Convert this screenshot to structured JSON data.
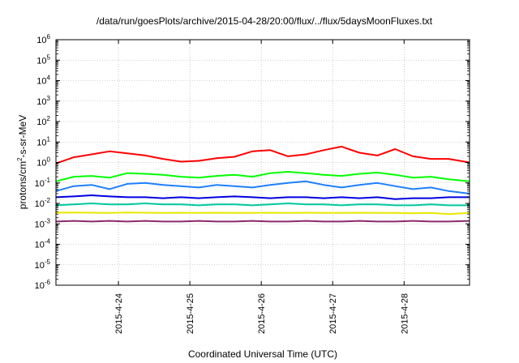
{
  "chart_data": {
    "type": "line",
    "title": "/data/run/goesPlots/archive/2015-04-28/20:00/flux/../flux/5daysMoonFluxes.txt",
    "xlabel": "Coordinated Universal Time (UTC)",
    "ylabel": {
      "prefix": "protons/cm",
      "sup": "2",
      "suffix": "-s-sr-MeV"
    },
    "y_scale": "log",
    "ylim": [
      1e-06,
      1000000.0
    ],
    "y_ticks": [
      {
        "exp": "-6"
      },
      {
        "exp": "-5"
      },
      {
        "exp": "-4"
      },
      {
        "exp": "-3"
      },
      {
        "exp": "-2"
      },
      {
        "exp": "-1"
      },
      {
        "exp": "0"
      },
      {
        "exp": "1"
      },
      {
        "exp": "2"
      },
      {
        "exp": "3"
      },
      {
        "exp": "4"
      },
      {
        "exp": "5"
      },
      {
        "exp": "6"
      }
    ],
    "y_tick_base": "10",
    "xlim": [
      "2015-04-23T03:00",
      "2015-04-28T22:00"
    ],
    "x_ticks": [
      "2015-4-24",
      "2015-4-25",
      "2015-4-26",
      "2015-4-27",
      "2015-4-28"
    ],
    "grid": true,
    "legend": "none",
    "series": [
      {
        "color": "#ff0000",
        "x": [
          "2015-04-23T03:00",
          "2015-04-23T09:00",
          "2015-04-23T15:00",
          "2015-04-23T21:00",
          "2015-04-24T03:00",
          "2015-04-24T09:00",
          "2015-04-24T15:00",
          "2015-04-24T21:00",
          "2015-04-25T03:00",
          "2015-04-25T09:00",
          "2015-04-25T15:00",
          "2015-04-25T21:00",
          "2015-04-26T03:00",
          "2015-04-26T09:00",
          "2015-04-26T15:00",
          "2015-04-26T21:00",
          "2015-04-27T03:00",
          "2015-04-27T09:00",
          "2015-04-27T15:00",
          "2015-04-27T21:00",
          "2015-04-28T03:00",
          "2015-04-28T09:00",
          "2015-04-28T15:00",
          "2015-04-28T22:00"
        ],
        "y": [
          0.9,
          1.8,
          2.5,
          3.5,
          2.8,
          2.2,
          1.5,
          1.1,
          1.2,
          1.6,
          1.9,
          3.5,
          4.0,
          2.0,
          2.5,
          4.0,
          6.0,
          3.0,
          2.2,
          4.5,
          2.0,
          1.5,
          1.5,
          1.0
        ]
      },
      {
        "color": "#00ff00",
        "x": [
          "2015-04-23T03:00",
          "2015-04-23T09:00",
          "2015-04-23T15:00",
          "2015-04-23T21:00",
          "2015-04-24T03:00",
          "2015-04-24T09:00",
          "2015-04-24T15:00",
          "2015-04-24T21:00",
          "2015-04-25T03:00",
          "2015-04-25T09:00",
          "2015-04-25T15:00",
          "2015-04-25T21:00",
          "2015-04-26T03:00",
          "2015-04-26T09:00",
          "2015-04-26T15:00",
          "2015-04-26T21:00",
          "2015-04-27T03:00",
          "2015-04-27T09:00",
          "2015-04-27T15:00",
          "2015-04-27T21:00",
          "2015-04-28T03:00",
          "2015-04-28T09:00",
          "2015-04-28T15:00",
          "2015-04-28T22:00"
        ],
        "y": [
          0.12,
          0.2,
          0.22,
          0.18,
          0.3,
          0.28,
          0.25,
          0.2,
          0.18,
          0.22,
          0.25,
          0.2,
          0.3,
          0.35,
          0.3,
          0.25,
          0.22,
          0.28,
          0.32,
          0.25,
          0.18,
          0.2,
          0.15,
          0.12
        ]
      },
      {
        "color": "#1e7fff",
        "x": [
          "2015-04-23T03:00",
          "2015-04-23T09:00",
          "2015-04-23T15:00",
          "2015-04-23T21:00",
          "2015-04-24T03:00",
          "2015-04-24T09:00",
          "2015-04-24T15:00",
          "2015-04-24T21:00",
          "2015-04-25T03:00",
          "2015-04-25T09:00",
          "2015-04-25T15:00",
          "2015-04-25T21:00",
          "2015-04-26T03:00",
          "2015-04-26T09:00",
          "2015-04-26T15:00",
          "2015-04-26T21:00",
          "2015-04-27T03:00",
          "2015-04-27T09:00",
          "2015-04-27T15:00",
          "2015-04-27T21:00",
          "2015-04-28T03:00",
          "2015-04-28T09:00",
          "2015-04-28T15:00",
          "2015-04-28T22:00"
        ],
        "y": [
          0.04,
          0.07,
          0.08,
          0.05,
          0.09,
          0.1,
          0.08,
          0.07,
          0.06,
          0.08,
          0.07,
          0.06,
          0.08,
          0.1,
          0.12,
          0.08,
          0.06,
          0.08,
          0.1,
          0.07,
          0.05,
          0.06,
          0.04,
          0.03
        ]
      },
      {
        "color": "#0000e0",
        "x": [
          "2015-04-23T03:00",
          "2015-04-23T09:00",
          "2015-04-23T15:00",
          "2015-04-23T21:00",
          "2015-04-24T03:00",
          "2015-04-24T09:00",
          "2015-04-24T15:00",
          "2015-04-24T21:00",
          "2015-04-25T03:00",
          "2015-04-25T09:00",
          "2015-04-25T15:00",
          "2015-04-25T21:00",
          "2015-04-26T03:00",
          "2015-04-26T09:00",
          "2015-04-26T15:00",
          "2015-04-26T21:00",
          "2015-04-27T03:00",
          "2015-04-27T09:00",
          "2015-04-27T15:00",
          "2015-04-27T21:00",
          "2015-04-28T03:00",
          "2015-04-28T09:00",
          "2015-04-28T15:00",
          "2015-04-28T22:00"
        ],
        "y": [
          0.02,
          0.022,
          0.025,
          0.022,
          0.02,
          0.02,
          0.018,
          0.02,
          0.018,
          0.02,
          0.022,
          0.02,
          0.018,
          0.02,
          0.02,
          0.018,
          0.02,
          0.018,
          0.02,
          0.016,
          0.018,
          0.018,
          0.02,
          0.02
        ]
      },
      {
        "color": "#00c8a0",
        "x": [
          "2015-04-23T03:00",
          "2015-04-23T09:00",
          "2015-04-23T15:00",
          "2015-04-23T21:00",
          "2015-04-24T03:00",
          "2015-04-24T09:00",
          "2015-04-24T15:00",
          "2015-04-24T21:00",
          "2015-04-25T03:00",
          "2015-04-25T09:00",
          "2015-04-25T15:00",
          "2015-04-25T21:00",
          "2015-04-26T03:00",
          "2015-04-26T09:00",
          "2015-04-26T15:00",
          "2015-04-26T21:00",
          "2015-04-27T03:00",
          "2015-04-27T09:00",
          "2015-04-27T15:00",
          "2015-04-27T21:00",
          "2015-04-28T03:00",
          "2015-04-28T09:00",
          "2015-04-28T15:00",
          "2015-04-28T22:00"
        ],
        "y": [
          0.008,
          0.009,
          0.01,
          0.009,
          0.009,
          0.01,
          0.009,
          0.009,
          0.008,
          0.009,
          0.009,
          0.008,
          0.009,
          0.01,
          0.009,
          0.009,
          0.008,
          0.009,
          0.009,
          0.008,
          0.008,
          0.009,
          0.008,
          0.008
        ]
      },
      {
        "color": "#e8e800",
        "x": [
          "2015-04-23T03:00",
          "2015-04-23T09:00",
          "2015-04-23T15:00",
          "2015-04-23T21:00",
          "2015-04-24T03:00",
          "2015-04-24T09:00",
          "2015-04-24T15:00",
          "2015-04-24T21:00",
          "2015-04-25T03:00",
          "2015-04-25T09:00",
          "2015-04-25T15:00",
          "2015-04-25T21:00",
          "2015-04-26T03:00",
          "2015-04-26T09:00",
          "2015-04-26T15:00",
          "2015-04-26T21:00",
          "2015-04-27T03:00",
          "2015-04-27T09:00",
          "2015-04-27T15:00",
          "2015-04-27T21:00",
          "2015-04-28T03:00",
          "2015-04-28T09:00",
          "2015-04-28T15:00",
          "2015-04-28T22:00"
        ],
        "y": [
          0.0035,
          0.0036,
          0.0035,
          0.0034,
          0.0036,
          0.0035,
          0.0034,
          0.0035,
          0.0034,
          0.0035,
          0.0034,
          0.0034,
          0.0035,
          0.0034,
          0.0035,
          0.0034,
          0.0034,
          0.0035,
          0.0034,
          0.0034,
          0.0033,
          0.0034,
          0.003,
          0.0034
        ]
      },
      {
        "color": "#8b2a6e",
        "x": [
          "2015-04-23T03:00",
          "2015-04-23T09:00",
          "2015-04-23T15:00",
          "2015-04-23T21:00",
          "2015-04-24T03:00",
          "2015-04-24T09:00",
          "2015-04-24T15:00",
          "2015-04-24T21:00",
          "2015-04-25T03:00",
          "2015-04-25T09:00",
          "2015-04-25T15:00",
          "2015-04-25T21:00",
          "2015-04-26T03:00",
          "2015-04-26T09:00",
          "2015-04-26T15:00",
          "2015-04-26T21:00",
          "2015-04-27T03:00",
          "2015-04-27T09:00",
          "2015-04-27T15:00",
          "2015-04-27T21:00",
          "2015-04-28T03:00",
          "2015-04-28T09:00",
          "2015-04-28T15:00",
          "2015-04-28T22:00"
        ],
        "y": [
          0.0013,
          0.0014,
          0.0013,
          0.0014,
          0.0013,
          0.0014,
          0.0013,
          0.0013,
          0.0014,
          0.0013,
          0.0013,
          0.0014,
          0.0013,
          0.0013,
          0.0014,
          0.0013,
          0.0013,
          0.0014,
          0.0013,
          0.0013,
          0.0014,
          0.0013,
          0.0013,
          0.0014
        ]
      }
    ]
  }
}
